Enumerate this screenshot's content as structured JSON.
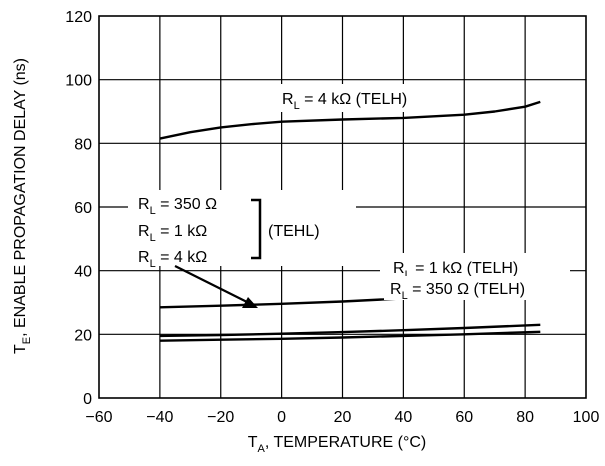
{
  "chart_data": {
    "type": "line",
    "title": "",
    "xlabel": {
      "main": "T",
      "sub": "A",
      "rest": ", TEMPERATURE (°C)"
    },
    "ylabel": {
      "main": "T",
      "sub": "E",
      "rest": ", ENABLE PROPAGATION DELAY (ns)"
    },
    "xlim": [
      -60,
      100
    ],
    "ylim": [
      0,
      120
    ],
    "xticks": [
      "−60",
      "−40",
      "−20",
      "0",
      "20",
      "40",
      "60",
      "80",
      "100"
    ],
    "yticks": [
      "0",
      "20",
      "40",
      "60",
      "80",
      "100",
      "120"
    ],
    "grid": true,
    "series": [
      {
        "name": "RL = 4 kΩ (TELH)",
        "x": [
          -40,
          -30,
          -20,
          -10,
          0,
          20,
          40,
          60,
          70,
          80,
          85
        ],
        "y": [
          81.5,
          83.5,
          85,
          86,
          86.8,
          87.5,
          88,
          89,
          90,
          91.5,
          93
        ]
      },
      {
        "name": "RL = 1 kΩ (TELH)",
        "x": [
          -40,
          -20,
          0,
          20,
          40,
          60,
          85
        ],
        "y": [
          28.5,
          29,
          29.6,
          30.3,
          31.3,
          32.5,
          34.5
        ]
      },
      {
        "name": "RL = 350 Ω (TELH)",
        "x": [
          -40,
          -20,
          0,
          20,
          40,
          60,
          85
        ],
        "y": [
          19.5,
          19.8,
          20.2,
          20.7,
          21.3,
          22,
          23
        ]
      },
      {
        "name": "TEHL",
        "x": [
          -40,
          -20,
          0,
          20,
          40,
          60,
          85
        ],
        "y": [
          18,
          18.3,
          18.6,
          19,
          19.5,
          20,
          20.8
        ]
      }
    ],
    "annotations": {
      "telh_4k": {
        "pre": "R",
        "sub": "L",
        "post": " = 4 kΩ (TELH)"
      },
      "telh_1k": {
        "pre": "R",
        "sub": "L",
        "post": " = 1 kΩ (TELH)"
      },
      "telh_350": {
        "pre": "R",
        "sub": "L",
        "post": " = 350 Ω (TELH)"
      },
      "tehl_items": [
        {
          "pre": "R",
          "sub": "L",
          "post": " = 350 Ω"
        },
        {
          "pre": "R",
          "sub": "L",
          "post": " = 1 kΩ"
        },
        {
          "pre": "R",
          "sub": "L",
          "post": " = 4 kΩ"
        }
      ],
      "tehl_label": "(TEHL)"
    }
  }
}
